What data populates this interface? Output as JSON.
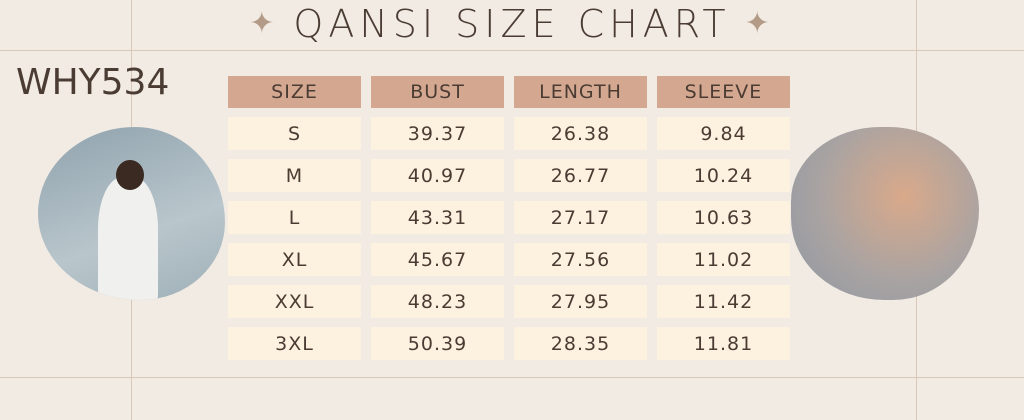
{
  "title": "QANSI SIZE CHART",
  "product_code": "WHY534",
  "icons": {
    "left": "sparkle-icon",
    "right": "sparkle-icon"
  },
  "colors": {
    "header": "#d4a890",
    "cell": "#fdf2e0",
    "background": "#f2ebe3",
    "text": "#4a3c33"
  },
  "table": {
    "headers": [
      "SIZE",
      "BUST",
      "LENGTH",
      "SLEEVE"
    ],
    "rows": [
      [
        "S",
        "39.37",
        "26.38",
        "9.84"
      ],
      [
        "M",
        "40.97",
        "26.77",
        "10.24"
      ],
      [
        "L",
        "43.31",
        "27.17",
        "10.63"
      ],
      [
        "XL",
        "45.67",
        "27.56",
        "11.02"
      ],
      [
        "XXL",
        "48.23",
        "27.95",
        "11.42"
      ],
      [
        "3XL",
        "50.39",
        "28.35",
        "11.81"
      ]
    ]
  }
}
